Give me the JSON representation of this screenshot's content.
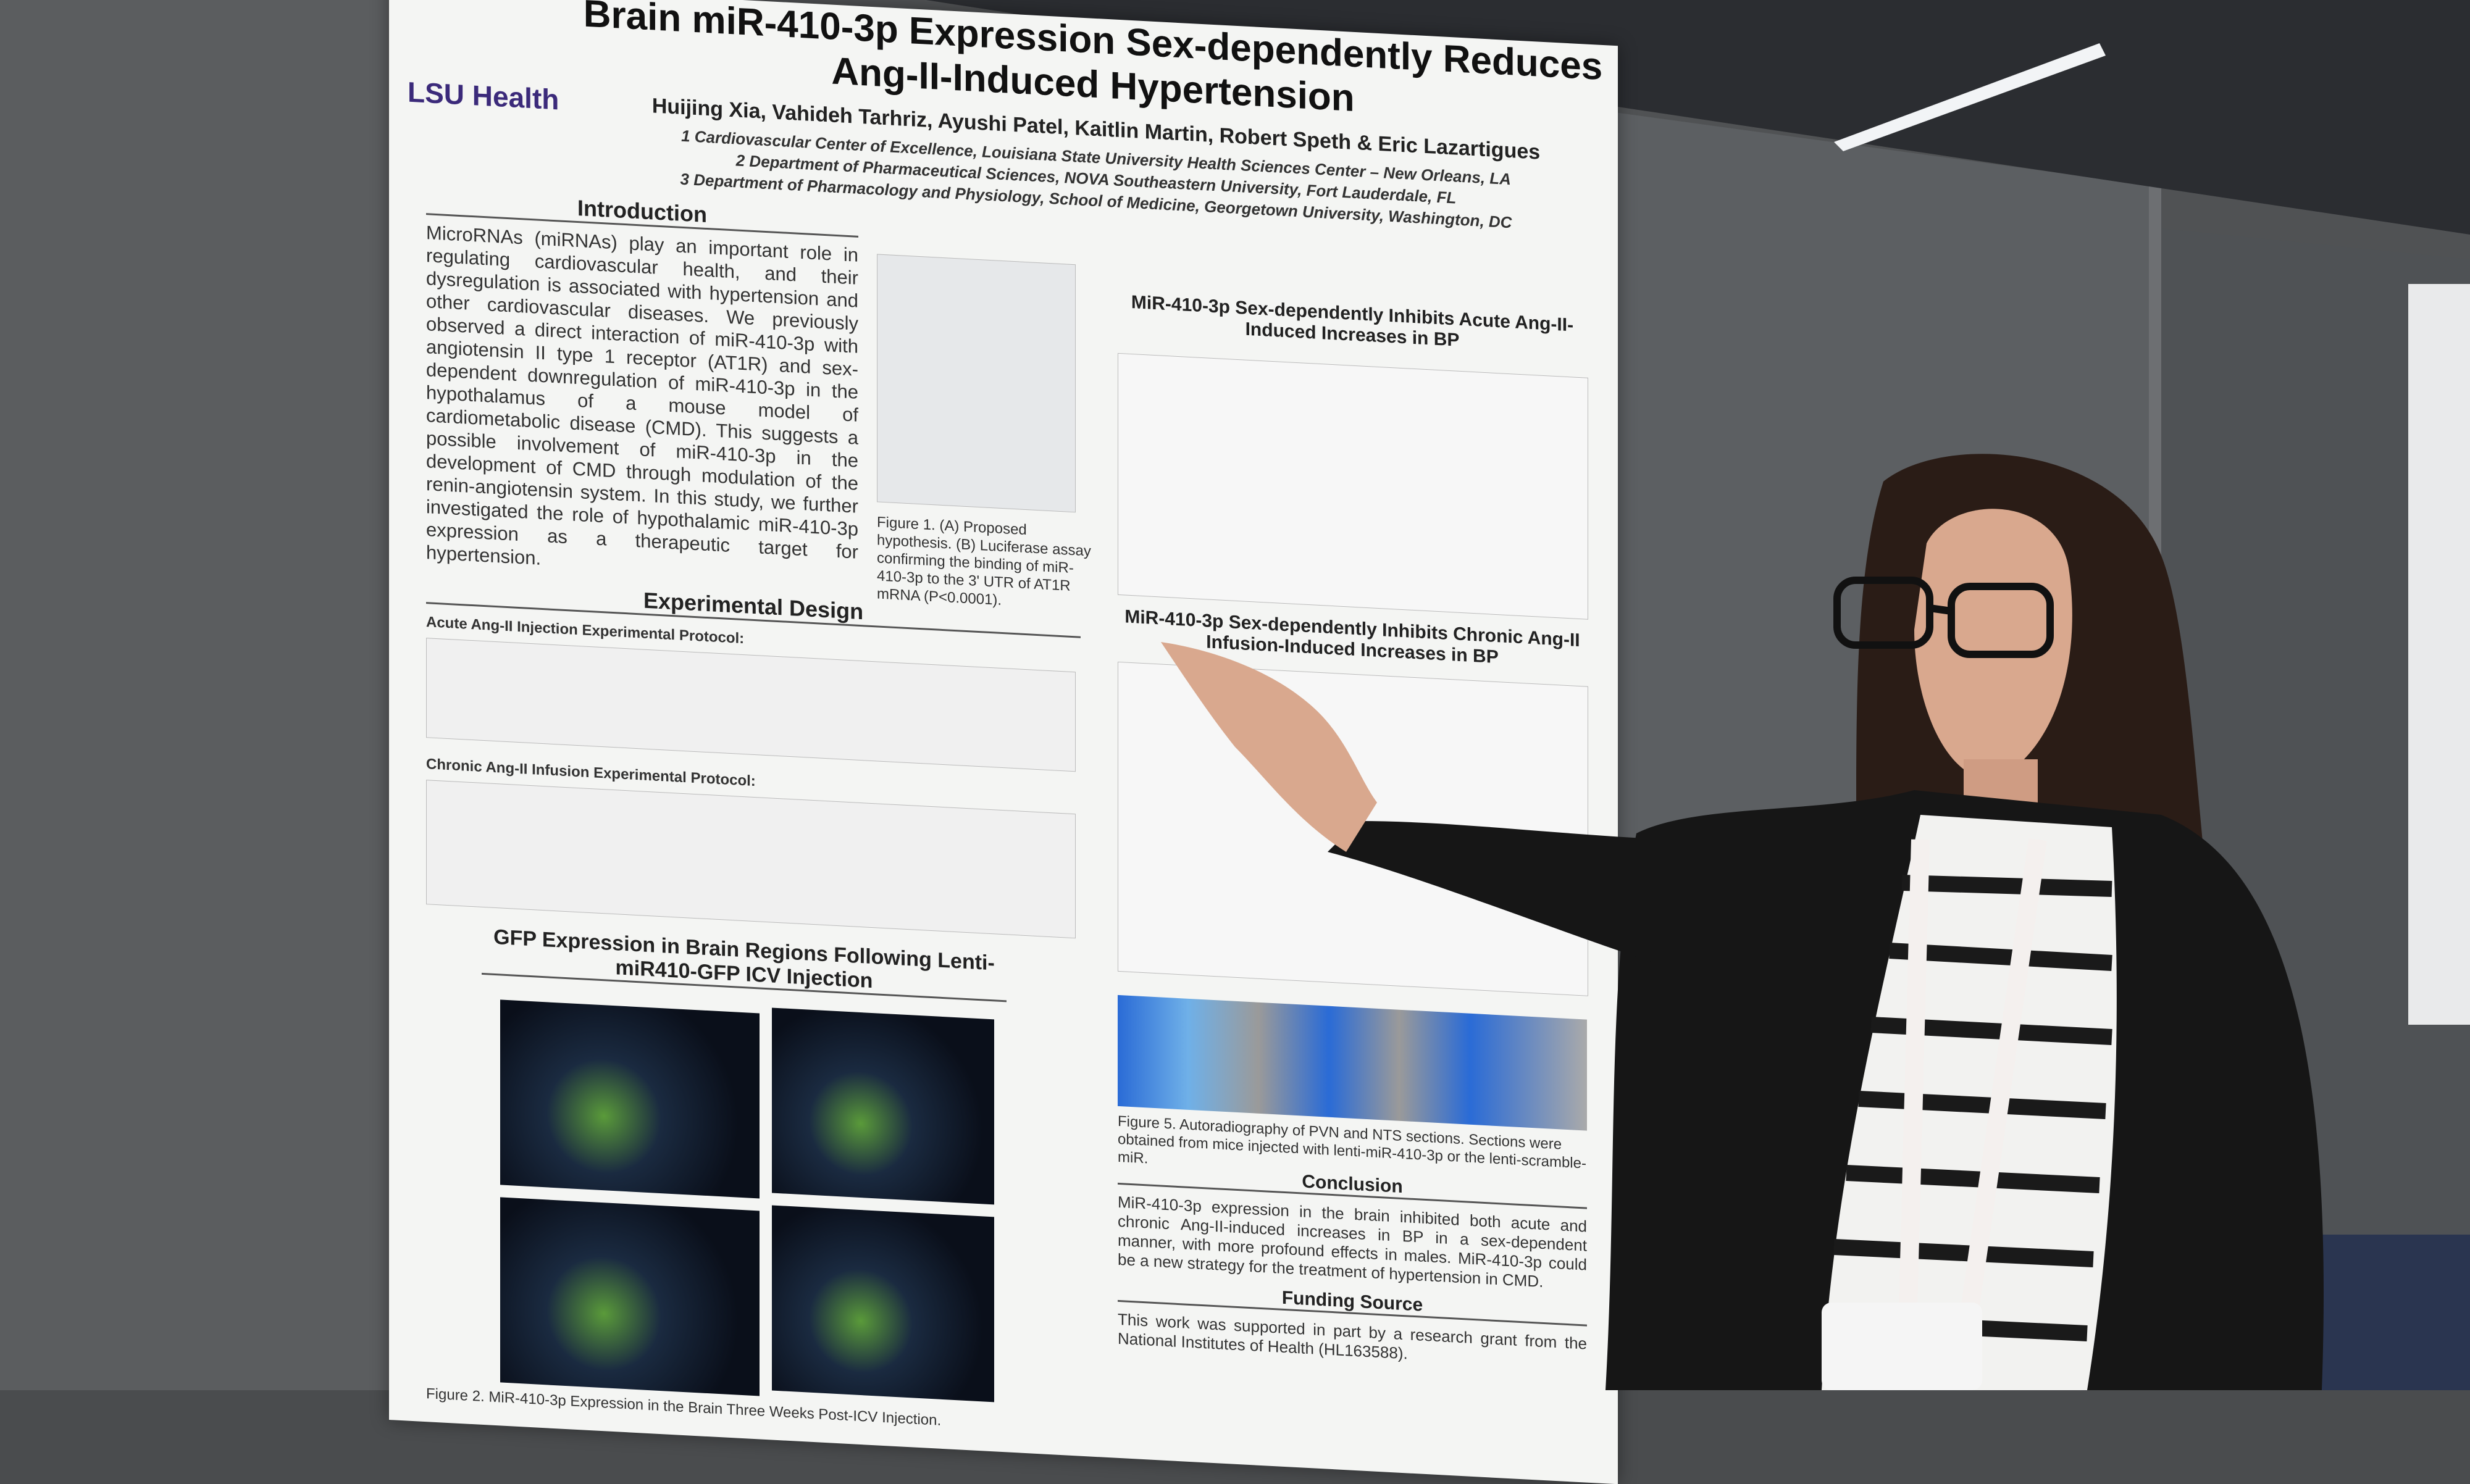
{
  "poster": {
    "logo": "LSU Health",
    "title": "Brain miR-410-3p Expression Sex-dependently Reduces Ang-II-Induced Hypertension",
    "authors": "Huijing Xia, Vahideh Tarhriz, Ayushi Patel, Kaitlin Martin, Robert Speth & Eric Lazartigues",
    "affiliations": [
      "1 Cardiovascular Center of Excellence, Louisiana State University Health Sciences Center – New Orleans, LA",
      "2 Department of Pharmaceutical Sciences, NOVA Southeastern University, Fort Lauderdale, FL",
      "3 Department of Pharmacology and Physiology, School of Medicine, Georgetown University, Washington, DC"
    ],
    "introduction": {
      "heading": "Introduction",
      "text": "MicroRNAs (miRNAs) play an important role in regulating cardiovascular health, and their dysregulation is associated with hypertension and other cardiovascular diseases. We previously observed a direct interaction of miR-410-3p with angiotensin II type 1 receptor (AT1R) and sex-dependent downregulation of miR-410-3p in the hypothalamus of a mouse model of cardiometabolic disease (CMD). This suggests a possible involvement of miR-410-3p in the development of CMD through modulation of the renin-angiotensin system. In this study, we further investigated the role of hypothalamic miR-410-3p expression as a therapeutic target for hypertension."
    },
    "figure1_caption": "Figure 1. (A) Proposed hypothesis. (B) Luciferase assay confirming the binding of miR-410-3p to the 3' UTR of AT1R mRNA (P<0.0001).",
    "experimental_design": {
      "heading": "Experimental Design",
      "acute": "Acute Ang-II Injection Experimental Protocol:",
      "chronic": "Chronic Ang-II Infusion Experimental Protocol:"
    },
    "gfp_heading": "GFP Expression in Brain Regions Following Lenti-miR410-GFP ICV Injection",
    "figure2_caption": "Figure 2. MiR-410-3p Expression in the Brain Three Weeks Post-ICV Injection.",
    "acute_title": "MiR-410-3p Sex-dependently Inhibits Acute Ang-II-Induced Increases in BP",
    "chronic_title": "MiR-410-3p Sex-dependently Inhibits Chronic Ang-II Infusion-Induced Increases in BP",
    "figure5_caption": "Figure 5. Autoradiography of PVN and NTS sections. Sections were obtained from mice injected with lenti-miR-410-3p or the lenti-scramble-miR.",
    "conclusion": {
      "heading": "Conclusion",
      "text": "MiR-410-3p expression in the brain inhibited both acute and chronic Ang-II-induced increases in BP in a sex-dependent manner, with more profound effects in males. MiR-410-3p could be a new strategy for the treatment of hypertension in CMD."
    },
    "funding": {
      "heading": "Funding Source",
      "text": "This work was supported in part by a research grant from the National Institutes of Health (HL163588)."
    }
  }
}
